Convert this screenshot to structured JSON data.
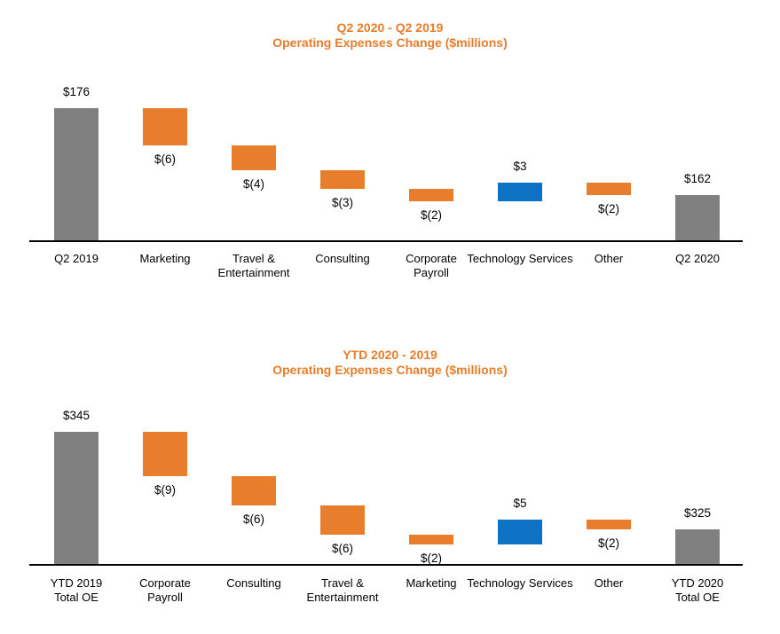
{
  "colors": {
    "title_orange": "#E87D2B",
    "bar_total_gray": "#808080",
    "bar_decrease_orange": "#E87D2B",
    "bar_increase_blue": "#0D72C4",
    "axis_black": "#000000",
    "label_black": "#000000"
  },
  "chart_data": [
    {
      "type": "bar",
      "subtype": "waterfall",
      "title": "Q2 2020 - Q2 2019",
      "subtitle": "Operating Expenses Change ($millions)",
      "categories": [
        [
          "Q2 2019"
        ],
        [
          "Marketing"
        ],
        [
          "Travel &",
          "Entertainment"
        ],
        [
          "Consulting"
        ],
        [
          "Corporate",
          "Payroll"
        ],
        [
          "Technology Services"
        ],
        [
          "Other"
        ],
        [
          "Q2 2020"
        ]
      ],
      "values": [
        176,
        -6,
        -4,
        -3,
        -2,
        3,
        -2,
        162
      ],
      "labels": [
        "$176",
        "$(6)",
        "$(4)",
        "$(3)",
        "$(2)",
        "$3",
        "$(2)",
        "$162"
      ],
      "roles": [
        "total",
        "decrease",
        "decrease",
        "decrease",
        "decrease",
        "increase",
        "decrease",
        "total"
      ],
      "colors": {
        "total": "#808080",
        "decrease": "#E87D2B",
        "increase": "#0D72C4"
      },
      "y_axis": "hidden",
      "grid": false,
      "legend": "none"
    },
    {
      "type": "bar",
      "subtype": "waterfall",
      "title": "YTD 2020 -  2019",
      "subtitle": "Operating Expenses Change ($millions)",
      "categories": [
        [
          "YTD 2019",
          "Total OE"
        ],
        [
          "Corporate",
          "Payroll"
        ],
        [
          "Consulting"
        ],
        [
          "Travel &",
          "Entertainment"
        ],
        [
          "Marketing"
        ],
        [
          "Technology Services"
        ],
        [
          "Other"
        ],
        [
          "YTD 2020",
          "Total OE"
        ]
      ],
      "values": [
        345,
        -9,
        -6,
        -6,
        -2,
        5,
        -2,
        325
      ],
      "labels": [
        "$345",
        "$(9)",
        "$(6)",
        "$(6)",
        "$(2)",
        "$5",
        "$(2)",
        "$325"
      ],
      "roles": [
        "total",
        "decrease",
        "decrease",
        "decrease",
        "decrease",
        "increase",
        "decrease",
        "total"
      ],
      "colors": {
        "total": "#808080",
        "decrease": "#E87D2B",
        "increase": "#0D72C4"
      },
      "y_axis": "hidden",
      "grid": false,
      "legend": "none"
    }
  ]
}
